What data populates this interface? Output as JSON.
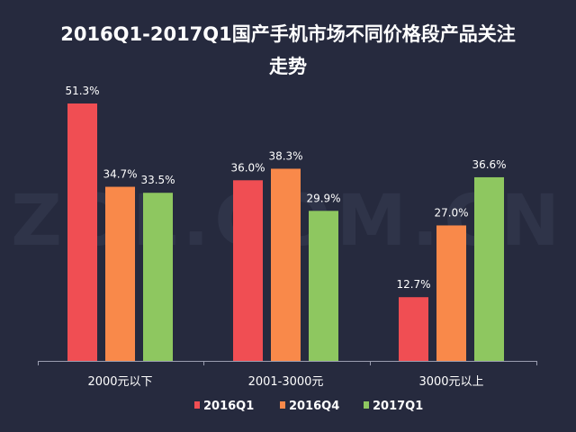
{
  "chart_data": {
    "type": "bar",
    "title_lines": [
      "2016Q1-2017Q1国产手机市场不同价格段产品关注",
      "走势"
    ],
    "watermark": "ZOL.COM.CN",
    "categories": [
      "2000元以下",
      "2001-3000元",
      "3000元以上"
    ],
    "series": [
      {
        "name": "2016Q1",
        "color": "#f04e53",
        "values": [
          51.3,
          36.0,
          12.7
        ],
        "labels": [
          "51.3%",
          "36.0%",
          "12.7%"
        ]
      },
      {
        "name": "2016Q4",
        "color": "#f9894a",
        "values": [
          34.7,
          38.3,
          27.0
        ],
        "labels": [
          "34.7%",
          "38.3%",
          "27.0%"
        ]
      },
      {
        "name": "2017Q1",
        "color": "#8ec760",
        "values": [
          33.5,
          29.9,
          36.6
        ],
        "labels": [
          "33.5%",
          "29.9%",
          "36.6%"
        ]
      }
    ],
    "ylim": [
      0,
      51.3
    ],
    "grid": false,
    "legend_position": "bottom-center",
    "xlabel": "",
    "ylabel": ""
  }
}
